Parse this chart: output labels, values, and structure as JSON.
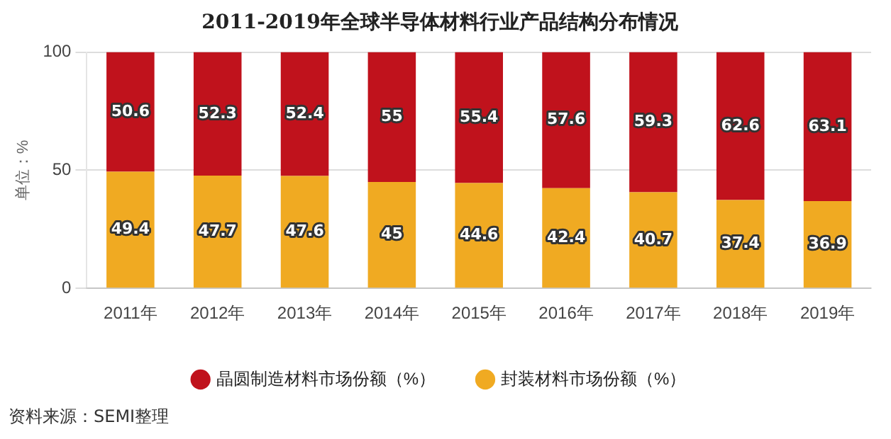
{
  "chart_data": {
    "type": "bar",
    "title": "2011-2019年全球半导体材料行业产品结构分布情况",
    "ylabel": "单位：%",
    "categories": [
      "2011年",
      "2012年",
      "2013年",
      "2014年",
      "2015年",
      "2016年",
      "2017年",
      "2018年",
      "2019年"
    ],
    "series": [
      {
        "name": "封装材料市场份额（%）",
        "color": "#f0aa22",
        "values": [
          49.4,
          47.7,
          47.6,
          45,
          44.6,
          42.4,
          40.7,
          37.4,
          36.9
        ]
      },
      {
        "name": "晶圆制造材料市场份额（%）",
        "color": "#c0121c",
        "values": [
          50.6,
          52.3,
          52.4,
          55,
          55.4,
          57.6,
          59.3,
          62.6,
          63.1
        ]
      }
    ],
    "stacked": true,
    "ylim": [
      0,
      100
    ],
    "yticks": [
      0,
      50,
      100
    ],
    "grid": "y",
    "legend": "bottom",
    "data_labels": true,
    "annotations": [
      "资料来源：SEMI整理"
    ]
  }
}
